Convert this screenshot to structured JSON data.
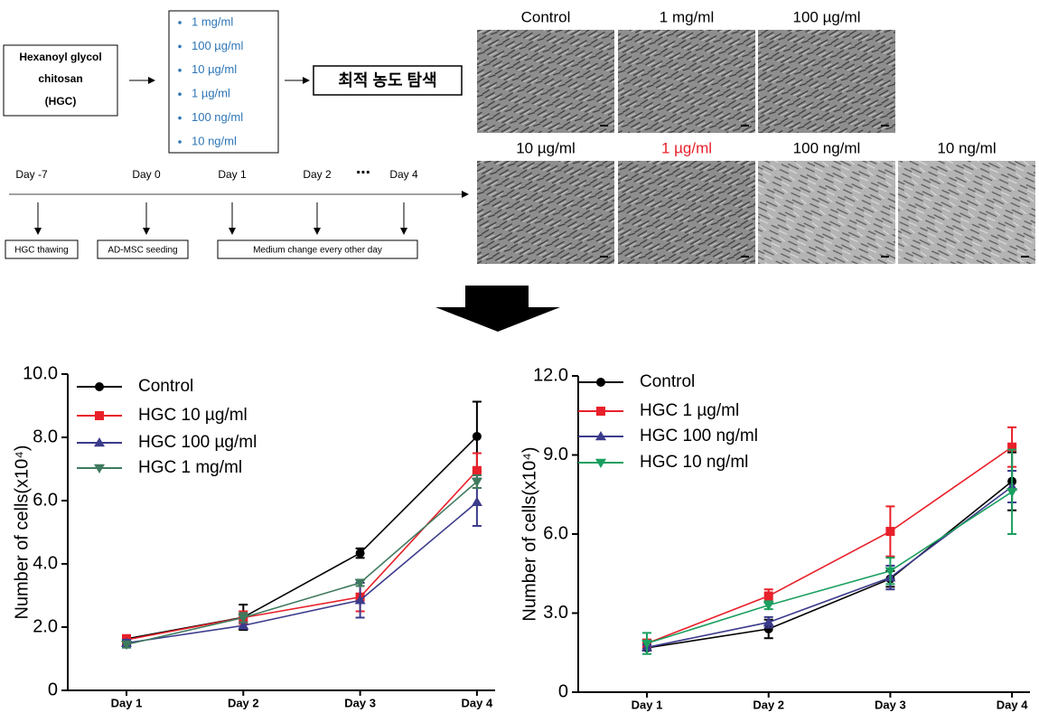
{
  "diagram": {
    "hgc_box": [
      "Hexanoyl glycol",
      "chitosan",
      "(HGC)"
    ],
    "concentrations": [
      "1 mg/ml",
      "100 µg/ml",
      "10 µg/ml",
      "1 µg/ml",
      "100 ng/ml",
      "10 ng/ml"
    ],
    "result_box": "최적 농도 탐색",
    "timeline": {
      "days": [
        "Day -7",
        "Day 0",
        "Day 1",
        "Day 2",
        "⋯",
        "Day 4"
      ],
      "steps": [
        "HGC thawing",
        "AD-MSC seeding",
        "Medium change every other day"
      ]
    },
    "micrographs": [
      "Control",
      "1 mg/ml",
      "100 µg/ml",
      "10 µg/ml",
      "1 µg/ml",
      "100 ng/ml",
      "10 ng/ml"
    ]
  },
  "chart_data": [
    {
      "type": "line",
      "y_label": "Number of cells(x10⁴)",
      "categories": [
        "Day 1",
        "Day 2",
        "Day 3",
        "Day 4"
      ],
      "ylim": [
        0,
        10
      ],
      "yticks": [
        0,
        {
          "value": 2,
          "label": "2.0"
        },
        {
          "value": 4,
          "label": "4.0"
        },
        {
          "value": 6,
          "label": "6.0"
        },
        {
          "value": 8,
          "label": "8.0"
        },
        {
          "value": 10,
          "label": "10.0"
        }
      ],
      "series": [
        {
          "name": "Control",
          "color": "#000000",
          "marker": "circle",
          "values": [
            1.63,
            2.31,
            4.34,
            8.03
          ],
          "errors": [
            0.1,
            0.4,
            0.15,
            1.1
          ]
        },
        {
          "name": "HGC 10 µg/ml",
          "color": "#e8202a",
          "marker": "square",
          "values": [
            1.6,
            2.3,
            2.95,
            6.95
          ],
          "errors": [
            0.15,
            0.2,
            0.45,
            0.55
          ]
        },
        {
          "name": "HGC 100 µg/ml",
          "color": "#3b3b8c",
          "marker": "triangle-up",
          "values": [
            1.5,
            2.05,
            2.85,
            5.95
          ],
          "errors": [
            0.1,
            0.1,
            0.55,
            0.75
          ]
        },
        {
          "name": "HGC 1 mg/ml",
          "color": "#3f7a5e",
          "marker": "triangle-down",
          "values": [
            1.45,
            2.3,
            3.4,
            6.6
          ],
          "errors": [
            0.1,
            0.15,
            0.1,
            0.2
          ]
        }
      ]
    },
    {
      "type": "line",
      "y_label": "Number of cells(x10⁴)",
      "categories": [
        "Day 1",
        "Day 2",
        "Day 3",
        "Day 4"
      ],
      "ylim": [
        0,
        12
      ],
      "yticks": [
        0,
        {
          "value": 3,
          "label": "3.0"
        },
        {
          "value": 6,
          "label": "6.0"
        },
        {
          "value": 9,
          "label": "9.0"
        },
        {
          "value": 12,
          "label": "12.0"
        }
      ],
      "series": [
        {
          "name": "Control",
          "color": "#000000",
          "marker": "circle",
          "values": [
            1.68,
            2.4,
            4.3,
            8.0
          ],
          "errors": [
            0.1,
            0.35,
            0.3,
            1.1
          ]
        },
        {
          "name": "HGC 1 µg/ml",
          "color": "#e8202a",
          "marker": "square",
          "values": [
            1.85,
            3.65,
            6.1,
            9.3
          ],
          "errors": [
            0.15,
            0.25,
            0.95,
            0.75
          ]
        },
        {
          "name": "HGC 100 ng/ml",
          "color": "#3b3b8c",
          "marker": "triangle-up",
          "values": [
            1.7,
            2.65,
            4.35,
            7.8
          ],
          "errors": [
            0.1,
            0.2,
            0.45,
            0.6
          ]
        },
        {
          "name": "HGC 10 ng/ml",
          "color": "#1a9f5f",
          "marker": "triangle-down",
          "values": [
            1.85,
            3.3,
            4.6,
            7.6
          ],
          "errors": [
            0.4,
            0.15,
            0.5,
            1.6
          ]
        }
      ]
    }
  ]
}
